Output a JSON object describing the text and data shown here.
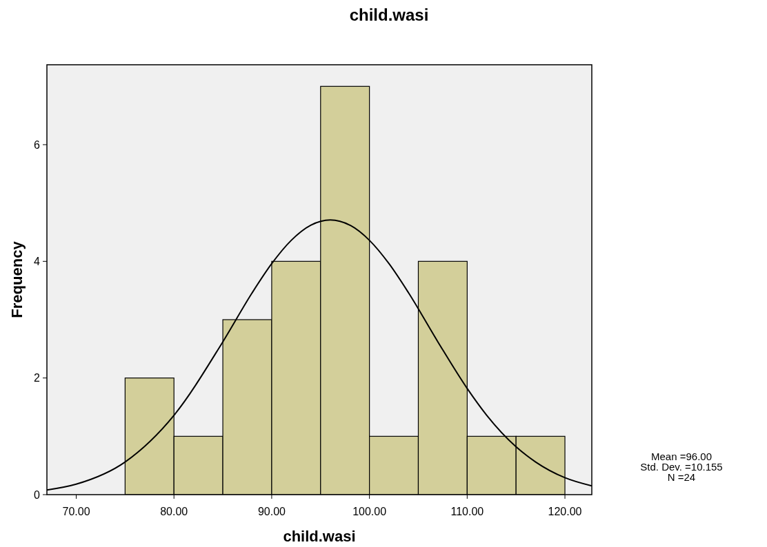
{
  "chart_data": {
    "type": "histogram",
    "title": "child.wasi",
    "xlabel": "child.wasi",
    "ylabel": "Frequency",
    "series": [
      {
        "color": "#d3cf9a",
        "bins": [
          75,
          80,
          85,
          90,
          95,
          100,
          105,
          110,
          115,
          120
        ],
        "values": [
          2,
          1,
          3,
          4,
          7,
          1,
          4,
          1,
          1
        ]
      },
      {
        "type": "line",
        "color": "#000000",
        "x": [
          67,
          70,
          75,
          80,
          85,
          88,
          90,
          92,
          94,
          96,
          98,
          100,
          102,
          104,
          107,
          110,
          112,
          115,
          117,
          120,
          122.75
        ],
        "values": [
          0.08,
          0.18,
          0.56,
          1.36,
          2.62,
          3.46,
          3.96,
          4.36,
          4.62,
          4.71,
          4.62,
          4.36,
          3.96,
          3.46,
          2.62,
          1.82,
          1.36,
          0.82,
          0.56,
          0.29,
          0.15
        ]
      }
    ],
    "xlim": [
      67,
      122.75
    ],
    "ylim": [
      0,
      7.37
    ],
    "xticks": [
      {
        "value": 70,
        "label": "70.00"
      },
      {
        "value": 80,
        "label": "80.00"
      },
      {
        "value": 90,
        "label": "90.00"
      },
      {
        "value": 100,
        "label": "100.00"
      },
      {
        "value": 110,
        "label": "110.00"
      },
      {
        "value": 120,
        "label": "120.00"
      }
    ],
    "yticks": [
      0,
      2,
      4,
      6
    ],
    "annotations": [
      "Mean =96.00",
      "Std. Dev. =10.155",
      "N =24"
    ]
  }
}
